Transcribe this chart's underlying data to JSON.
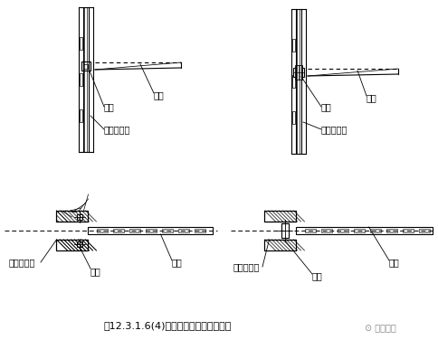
{
  "title": "图12.3.1.6(4)托臂在工字钢立柱上安装",
  "watermark": "⊙ 电工之家",
  "bg_color": "#ffffff",
  "line_color": "#000000",
  "labels": {
    "luo_shuan": "螺栓",
    "tuo_bi": "托臂",
    "gong_zi_gang": "工字钢立柱"
  },
  "figsize": [
    4.85,
    3.76
  ],
  "dpi": 100
}
